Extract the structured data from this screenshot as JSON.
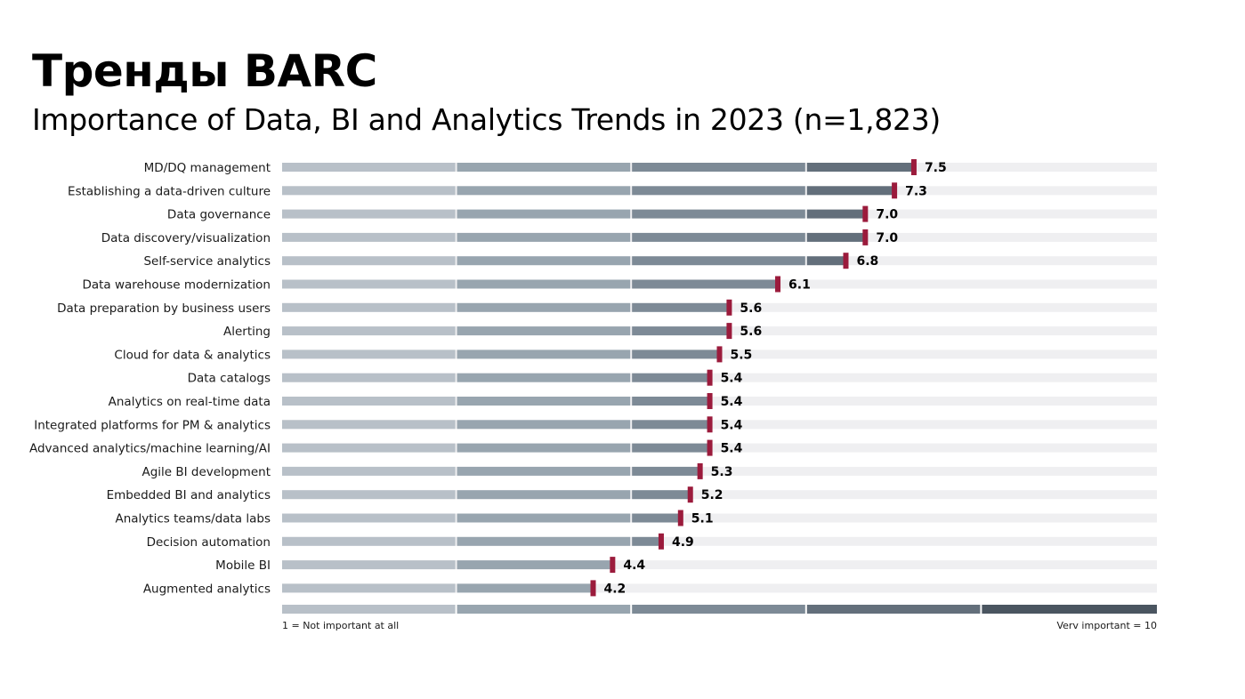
{
  "title": "Тренды BARC",
  "subtitle": "Importance of Data, BI and Analytics Trends in 2023 (n=1,823)",
  "chart_data": {
    "type": "bar",
    "orientation": "horizontal",
    "categories": [
      "MD/DQ management",
      "Establishing a data-driven culture",
      "Data governance",
      "Data discovery/visualization",
      "Self-service analytics",
      "Data warehouse modernization",
      "Data preparation by business users",
      "Alerting",
      "Cloud for data & analytics",
      "Data catalogs",
      "Analytics on real-time data",
      "Integrated platforms for PM & analytics",
      "Advanced analytics/machine learning/AI",
      "Agile BI development",
      "Embedded BI and analytics",
      "Analytics teams/data labs",
      "Decision automation",
      "Mobile BI",
      "Augmented analytics"
    ],
    "values": [
      7.5,
      7.3,
      7.0,
      7.0,
      6.8,
      6.1,
      5.6,
      5.6,
      5.5,
      5.4,
      5.4,
      5.4,
      5.4,
      5.3,
      5.2,
      5.1,
      4.9,
      4.4,
      4.2
    ],
    "value_labels": [
      "7.5",
      "7.3",
      "7.0",
      "7.0",
      "6.8",
      "6.1",
      "5.6",
      "5.6",
      "5.5",
      "5.4",
      "5.4",
      "5.4",
      "5.4",
      "5.3",
      "5.2",
      "5.1",
      "4.9",
      "4.4",
      "4.2"
    ],
    "xlim": [
      1,
      10
    ],
    "scale_min_label": "1 = Not important at all",
    "scale_max_label": "Verv important = 10",
    "grid": false,
    "colors": {
      "segments": [
        "#b8c0c8",
        "#98a5af",
        "#7d8a96",
        "#636f7b",
        "#4a5560"
      ],
      "track": "#efeff1",
      "marker": "#9b1b3c"
    }
  }
}
